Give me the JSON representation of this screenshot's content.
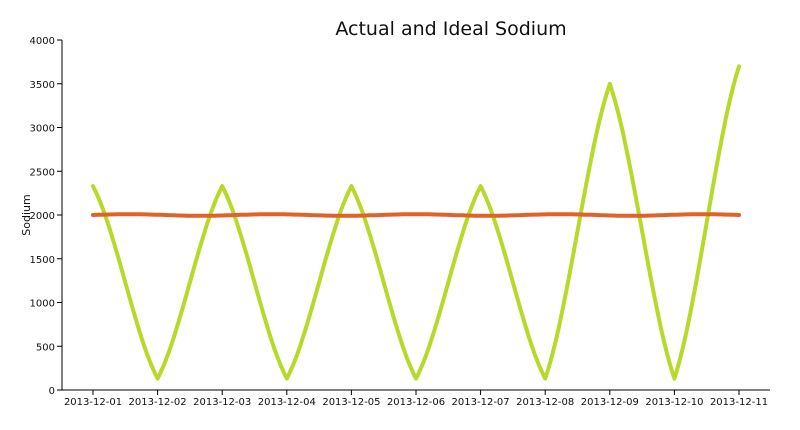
{
  "chart_data": {
    "type": "line",
    "title": "Actual and Ideal Sodium",
    "xlabel": "",
    "ylabel": "Sodium",
    "ylim": [
      0,
      4000
    ],
    "yticks": [
      0,
      500,
      1000,
      1500,
      2000,
      2500,
      3000,
      3500,
      4000
    ],
    "categories": [
      "2013-12-01",
      "2013-12-02",
      "2013-12-03",
      "2013-12-04",
      "2013-12-05",
      "2013-12-06",
      "2013-12-07",
      "2013-12-08",
      "2013-12-09",
      "2013-12-10",
      "2013-12-11"
    ],
    "grid": false,
    "legend": "none",
    "series": [
      {
        "values": [
          2330,
          130,
          2330,
          130,
          2330,
          130,
          2330,
          130,
          3500,
          130,
          3700
        ],
        "color": "#b7d92c"
      },
      {
        "values": [
          2000,
          2000,
          2000,
          2000,
          2000,
          2000,
          2000,
          2000,
          2000,
          2000,
          2000
        ],
        "color": "#e0622a"
      }
    ]
  }
}
